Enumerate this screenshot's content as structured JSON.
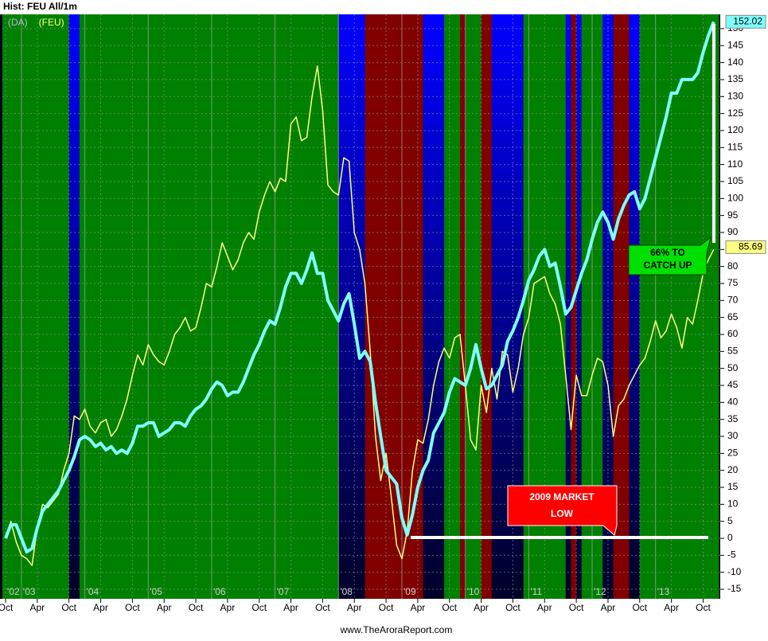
{
  "header": "Hist: FEU All/1m",
  "footer": "www.TheAroraReport.com",
  "chart_data": {
    "type": "line",
    "x": [
      "2002-10",
      "2002-11",
      "2002-12",
      "2003-01",
      "2003-02",
      "2003-03",
      "2003-04",
      "2003-05",
      "2003-06",
      "2003-07",
      "2003-08",
      "2003-09",
      "2003-10",
      "2003-11",
      "2003-12",
      "2004-01",
      "2004-02",
      "2004-03",
      "2004-04",
      "2004-05",
      "2004-06",
      "2004-07",
      "2004-08",
      "2004-09",
      "2004-10",
      "2004-11",
      "2004-12",
      "2005-01",
      "2005-02",
      "2005-03",
      "2005-04",
      "2005-05",
      "2005-06",
      "2005-07",
      "2005-08",
      "2005-09",
      "2005-10",
      "2005-11",
      "2005-12",
      "2006-01",
      "2006-02",
      "2006-03",
      "2006-04",
      "2006-05",
      "2006-06",
      "2006-07",
      "2006-08",
      "2006-09",
      "2006-10",
      "2006-11",
      "2006-12",
      "2007-01",
      "2007-02",
      "2007-03",
      "2007-04",
      "2007-05",
      "2007-06",
      "2007-07",
      "2007-08",
      "2007-09",
      "2007-10",
      "2007-11",
      "2007-12",
      "2008-01",
      "2008-02",
      "2008-03",
      "2008-04",
      "2008-05",
      "2008-06",
      "2008-07",
      "2008-08",
      "2008-09",
      "2008-10",
      "2008-11",
      "2008-12",
      "2009-01",
      "2009-02",
      "2009-03",
      "2009-04",
      "2009-05",
      "2009-06",
      "2009-07",
      "2009-08",
      "2009-09",
      "2009-10",
      "2009-11",
      "2009-12",
      "2010-01",
      "2010-02",
      "2010-03",
      "2010-04",
      "2010-05",
      "2010-06",
      "2010-07",
      "2010-08",
      "2010-09",
      "2010-10",
      "2010-11",
      "2010-12",
      "2011-01",
      "2011-02",
      "2011-03",
      "2011-04",
      "2011-05",
      "2011-06",
      "2011-07",
      "2011-08",
      "2011-09",
      "2011-10",
      "2011-11",
      "2011-12",
      "2012-01",
      "2012-02",
      "2012-03",
      "2012-04",
      "2012-05",
      "2012-06",
      "2012-07",
      "2012-08",
      "2012-09",
      "2012-10",
      "2012-11",
      "2012-12",
      "2013-01",
      "2013-02",
      "2013-03",
      "2013-04",
      "2013-05",
      "2013-06",
      "2013-07",
      "2013-08",
      "2013-09",
      "2013-10",
      "2013-11",
      "2013-12"
    ],
    "series": [
      {
        "name": "(DA)",
        "color": "#80ffff",
        "legend_color": "#b8b8d8",
        "width": 4,
        "last_value": 152.02,
        "values": [
          0,
          4,
          4,
          0,
          -4,
          -3,
          3,
          8,
          10,
          12,
          14,
          17,
          20,
          24,
          29,
          30,
          29,
          27,
          28,
          26,
          27,
          25,
          26,
          25,
          28,
          33,
          33,
          34,
          34,
          30,
          31,
          32,
          34,
          34,
          33,
          36,
          38,
          39,
          41,
          44,
          46,
          45,
          42,
          43,
          43,
          46,
          50,
          54,
          57,
          61,
          64,
          63,
          68,
          74,
          78,
          78,
          75,
          79,
          84,
          78,
          78,
          70,
          67,
          64,
          69,
          72,
          63,
          53,
          55,
          52,
          40,
          30,
          20,
          18,
          16,
          6,
          1,
          7,
          15,
          20,
          23,
          31,
          34,
          37,
          43,
          47,
          46,
          45,
          50,
          57,
          50,
          44,
          45,
          48,
          51,
          58,
          61,
          65,
          70,
          76,
          79,
          83,
          85,
          80,
          81,
          74,
          66,
          68,
          73,
          78,
          82,
          88,
          93,
          96,
          93,
          88,
          94,
          98,
          101,
          102,
          97,
          100,
          106,
          112,
          118,
          124,
          131,
          131,
          135,
          135,
          135,
          137,
          143,
          148,
          152
        ]
      },
      {
        "name": "(FEU)",
        "color": "#ffff80",
        "legend_color": "#ffff80",
        "width": 1.5,
        "last_value": 85.69,
        "values": [
          0,
          5,
          -1,
          -5,
          -6,
          -8,
          3,
          10,
          9,
          11,
          13,
          20,
          25,
          36,
          35,
          38,
          33,
          31,
          34,
          35,
          30,
          32,
          36,
          41,
          48,
          54,
          51,
          57,
          54,
          52,
          51,
          55,
          60,
          62,
          65,
          61,
          62,
          68,
          75,
          74,
          80,
          87,
          83,
          79,
          82,
          87,
          90,
          88,
          96,
          101,
          105,
          102,
          106,
          105,
          122,
          124,
          117,
          118,
          130,
          139,
          126,
          104,
          102,
          101,
          112,
          111,
          90,
          85,
          75,
          55,
          30,
          17,
          25,
          12,
          -2,
          -6,
          2,
          20,
          29,
          28,
          35,
          45,
          52,
          56,
          53,
          59,
          60,
          45,
          29,
          26,
          45,
          37,
          50,
          41,
          55,
          54,
          43,
          50,
          60,
          65,
          75,
          76,
          77,
          72,
          69,
          63,
          48,
          32,
          48,
          42,
          42,
          48,
          53,
          52,
          45,
          30,
          39,
          41,
          45,
          48,
          51,
          53,
          58,
          64,
          59,
          61,
          66,
          62,
          56,
          65,
          63,
          70,
          78,
          82,
          85
        ]
      }
    ],
    "regions": [
      {
        "from": "2002-10",
        "to": "2003-10",
        "color": "#008000"
      },
      {
        "from": "2003-10",
        "to": "2003-12",
        "color": "#0000ff",
        "color_bottom": "#000028"
      },
      {
        "from": "2003-12",
        "to": "2008-01",
        "color": "#008000"
      },
      {
        "from": "2008-01",
        "to": "2008-06",
        "color": "#0000ff",
        "color_bottom": "#000028"
      },
      {
        "from": "2008-06",
        "to": "2009-05",
        "color": "#800000"
      },
      {
        "from": "2009-05",
        "to": "2009-09",
        "color": "#0000ff",
        "color_bottom": "#000028"
      },
      {
        "from": "2009-09",
        "to": "2009-12",
        "color": "#008000"
      },
      {
        "from": "2009-12",
        "to": "2010-01",
        "color": "#800000"
      },
      {
        "from": "2010-01",
        "to": "2010-04",
        "color": "#008000"
      },
      {
        "from": "2010-04",
        "to": "2010-06",
        "color": "#800000"
      },
      {
        "from": "2010-06",
        "to": "2010-12",
        "color": "#0000ff",
        "color_bottom": "#000028"
      },
      {
        "from": "2010-12",
        "to": "2011-08",
        "color": "#008000"
      },
      {
        "from": "2011-08",
        "to": "2011-09",
        "color": "#0000ff",
        "color_bottom": "#000028"
      },
      {
        "from": "2011-09",
        "to": "2011-10",
        "color": "#800000"
      },
      {
        "from": "2011-10",
        "to": "2011-11",
        "color": "#0000ff",
        "color_bottom": "#000028"
      },
      {
        "from": "2011-11",
        "to": "2012-03",
        "color": "#008000"
      },
      {
        "from": "2012-03",
        "to": "2012-05",
        "color": "#0000ff",
        "color_bottom": "#000028"
      },
      {
        "from": "2012-05",
        "to": "2012-08",
        "color": "#800000"
      },
      {
        "from": "2012-08",
        "to": "2012-10",
        "color": "#0000ff",
        "color_bottom": "#000028"
      },
      {
        "from": "2012-10",
        "to": "2014-01",
        "color": "#008000"
      }
    ],
    "xlim": [
      "2002-10",
      "2014-01"
    ],
    "xticks": [
      {
        "value": "2002-10",
        "label": "Oct"
      },
      {
        "value": "2003-04",
        "label": "Apr"
      },
      {
        "value": "2003-10",
        "label": "Oct"
      },
      {
        "value": "2004-04",
        "label": "Apr"
      },
      {
        "value": "2004-10",
        "label": "Oct"
      },
      {
        "value": "2005-04",
        "label": "Apr"
      },
      {
        "value": "2005-10",
        "label": "Oct"
      },
      {
        "value": "2006-04",
        "label": "Apr"
      },
      {
        "value": "2006-10",
        "label": "Oct"
      },
      {
        "value": "2007-04",
        "label": "Apr"
      },
      {
        "value": "2007-10",
        "label": "Oct"
      },
      {
        "value": "2008-04",
        "label": "Apr"
      },
      {
        "value": "2008-10",
        "label": "Oct"
      },
      {
        "value": "2009-04",
        "label": "Apr"
      },
      {
        "value": "2009-10",
        "label": "Oct"
      },
      {
        "value": "2010-04",
        "label": "Apr"
      },
      {
        "value": "2010-10",
        "label": "Oct"
      },
      {
        "value": "2011-04",
        "label": "Apr"
      },
      {
        "value": "2011-10",
        "label": "Oct"
      },
      {
        "value": "2012-04",
        "label": "Apr"
      },
      {
        "value": "2012-10",
        "label": "Oct"
      },
      {
        "value": "2013-04",
        "label": "Apr"
      },
      {
        "value": "2013-10",
        "label": "Oct"
      }
    ],
    "year_ticks": [
      {
        "value": "2002-10",
        "label": "'02"
      },
      {
        "value": "2003-01",
        "label": "'03"
      },
      {
        "value": "2004-01",
        "label": "'04"
      },
      {
        "value": "2005-01",
        "label": "'05"
      },
      {
        "value": "2006-01",
        "label": "'06"
      },
      {
        "value": "2007-01",
        "label": "'07"
      },
      {
        "value": "2008-01",
        "label": "'08"
      },
      {
        "value": "2009-01",
        "label": "'09"
      },
      {
        "value": "2010-01",
        "label": "'10"
      },
      {
        "value": "2011-01",
        "label": "'11"
      },
      {
        "value": "2012-01",
        "label": "'12"
      },
      {
        "value": "2013-01",
        "label": "'13"
      }
    ],
    "ylim": [
      -17.8,
      154.2
    ],
    "yticks": [
      -15,
      -10,
      -5,
      0,
      5,
      10,
      15,
      20,
      25,
      30,
      35,
      40,
      45,
      50,
      55,
      60,
      65,
      70,
      75,
      80,
      85,
      90,
      95,
      100,
      105,
      110,
      115,
      120,
      125,
      130,
      135,
      140,
      145,
      150
    ],
    "grid": true,
    "annotations": [
      {
        "lines": [
          "66% TO",
          "CATCH UP"
        ]
      },
      {
        "lines": [
          "2009 MARKET",
          "LOW"
        ]
      }
    ]
  }
}
